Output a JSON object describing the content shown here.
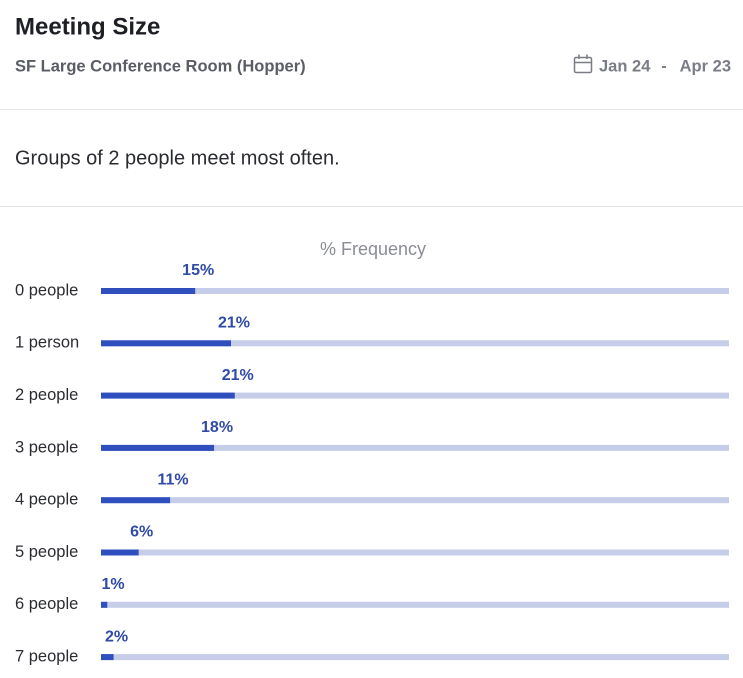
{
  "header": {
    "title": "Meeting Size",
    "subtitle": "SF Large Conference Room (Hopper)",
    "date_start": "Jan 24",
    "date_separator": "-",
    "date_end": "Apr 23"
  },
  "summary": "Groups of 2 people meet most often.",
  "chart_data": {
    "type": "bar",
    "orientation": "horizontal",
    "title": "% Frequency",
    "categories": [
      "0 people",
      "1 person",
      "2 people",
      "3 people",
      "4 people",
      "5 people",
      "6 people",
      "7 people"
    ],
    "values": [
      15,
      20.7,
      21.3,
      18,
      11,
      6,
      1,
      2
    ],
    "value_labels": [
      "15%",
      "21%",
      "21%",
      "18%",
      "11%",
      "6%",
      "1%",
      "2%"
    ],
    "xlim": [
      0,
      100
    ],
    "color": "#2f4fbf",
    "track_color": "#c5cde8"
  }
}
